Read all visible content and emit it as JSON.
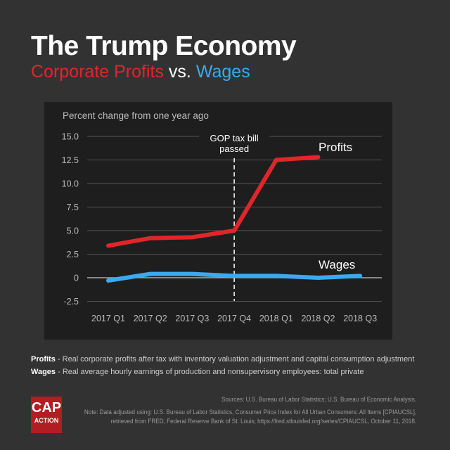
{
  "title": "The Trump Economy",
  "subtitle": {
    "profits": "Corporate Profits",
    "vs": " vs. ",
    "wages": "Wages"
  },
  "chart_data": {
    "type": "line",
    "ylabel": "Percent change from one year ago",
    "categories": [
      "2017 Q1",
      "2017 Q2",
      "2017 Q3",
      "2017 Q4",
      "2018 Q1",
      "2018 Q2",
      "2018 Q3"
    ],
    "yticks": [
      "15.0",
      "12.5",
      "10.0",
      "7.5",
      "5.0",
      "2.5",
      "0",
      "-2.5"
    ],
    "ylim": [
      -2.5,
      15
    ],
    "grid": true,
    "series": [
      {
        "name": "Profits",
        "color": "#e0262b",
        "values": [
          3.4,
          4.2,
          4.3,
          5.0,
          12.5,
          12.8,
          null
        ]
      },
      {
        "name": "Wages",
        "color": "#3aaaf0",
        "values": [
          -0.3,
          0.4,
          0.4,
          0.2,
          0.2,
          0.0,
          0.2
        ]
      }
    ],
    "annotation": {
      "text_line1": "GOP tax bill",
      "text_line2": "passed",
      "at": "2017 Q4"
    }
  },
  "definitions": [
    {
      "term": "Profits",
      "text": " - Real corporate profits after tax with inventory valuation adjustment and capital consumption adjustment"
    },
    {
      "term": "Wages",
      "text": " - Real average hourly earnings of production and nonsupervisory employees: total private"
    }
  ],
  "sources": "Sources: U.S. Bureau of Labor Statistics; U.S. Bureau of Economic Analysis.",
  "note1": "Note: Data adjusted using: U.S. Bureau of Labor Statistics, Consumer Price Index for All Urban Consumers: All Items [CPIAUCSL],",
  "note2": "retrieved from FRED, Federal Reserve Bank of St. Louis; https://fred.stlouisfed.org/series/CPIAUCSL, October 11, 2018.",
  "logo": {
    "line1": "CAP",
    "line2": "ACTION"
  }
}
